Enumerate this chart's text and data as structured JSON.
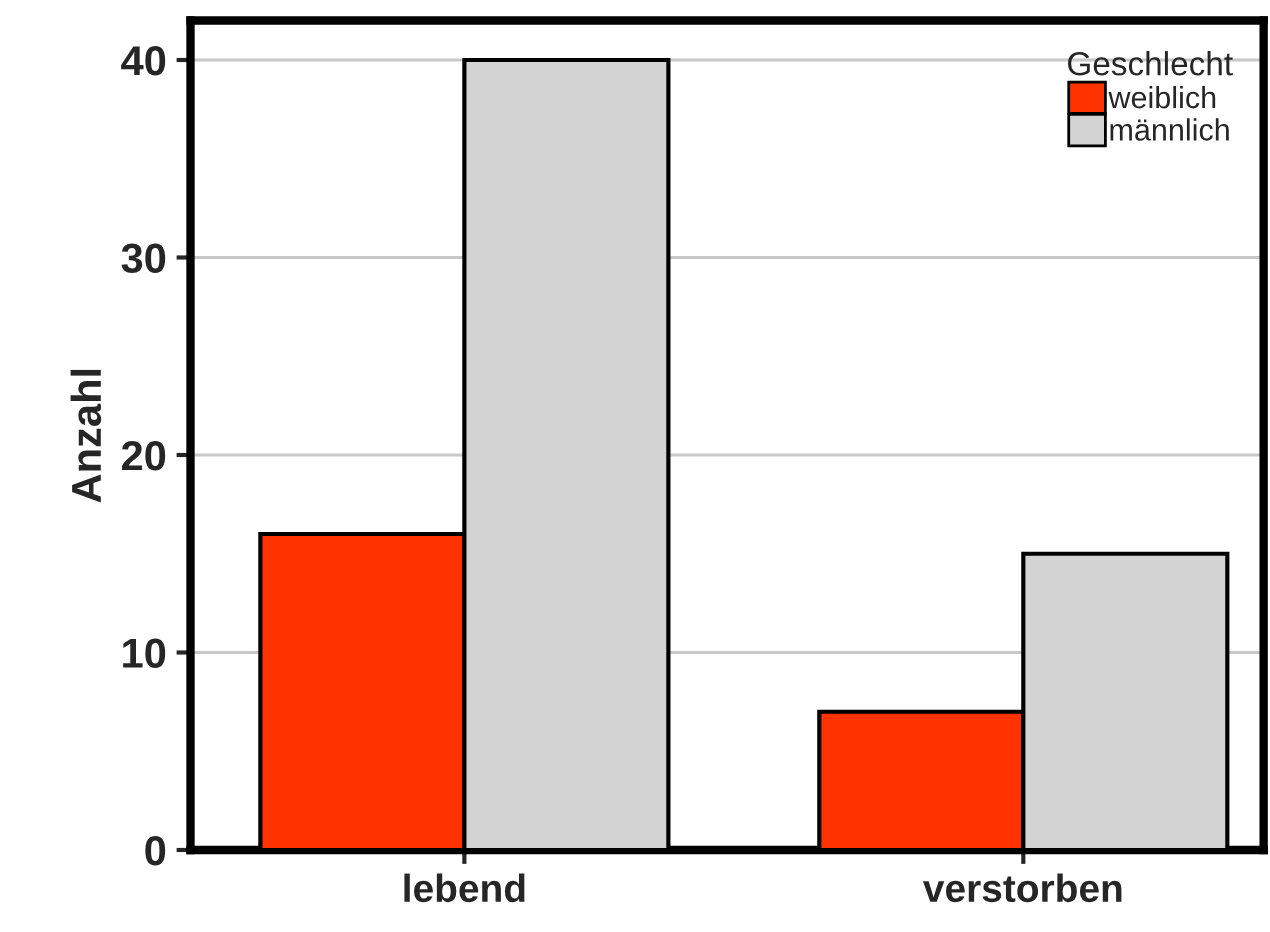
{
  "chart_data": {
    "type": "bar",
    "categories": [
      "lebend",
      "verstorben"
    ],
    "ylabel": "Anzahl",
    "legend_title": "Geschlecht",
    "series": [
      {
        "name": "weiblich",
        "color": "#ff3300",
        "values": [
          16,
          7
        ]
      },
      {
        "name": "männlich",
        "color": "#d3d3d3",
        "values": [
          40,
          15
        ]
      }
    ],
    "ylim": [
      0,
      42
    ],
    "yticks": [
      0,
      10,
      20,
      30,
      40
    ],
    "grid": "y",
    "legend": "top right"
  }
}
